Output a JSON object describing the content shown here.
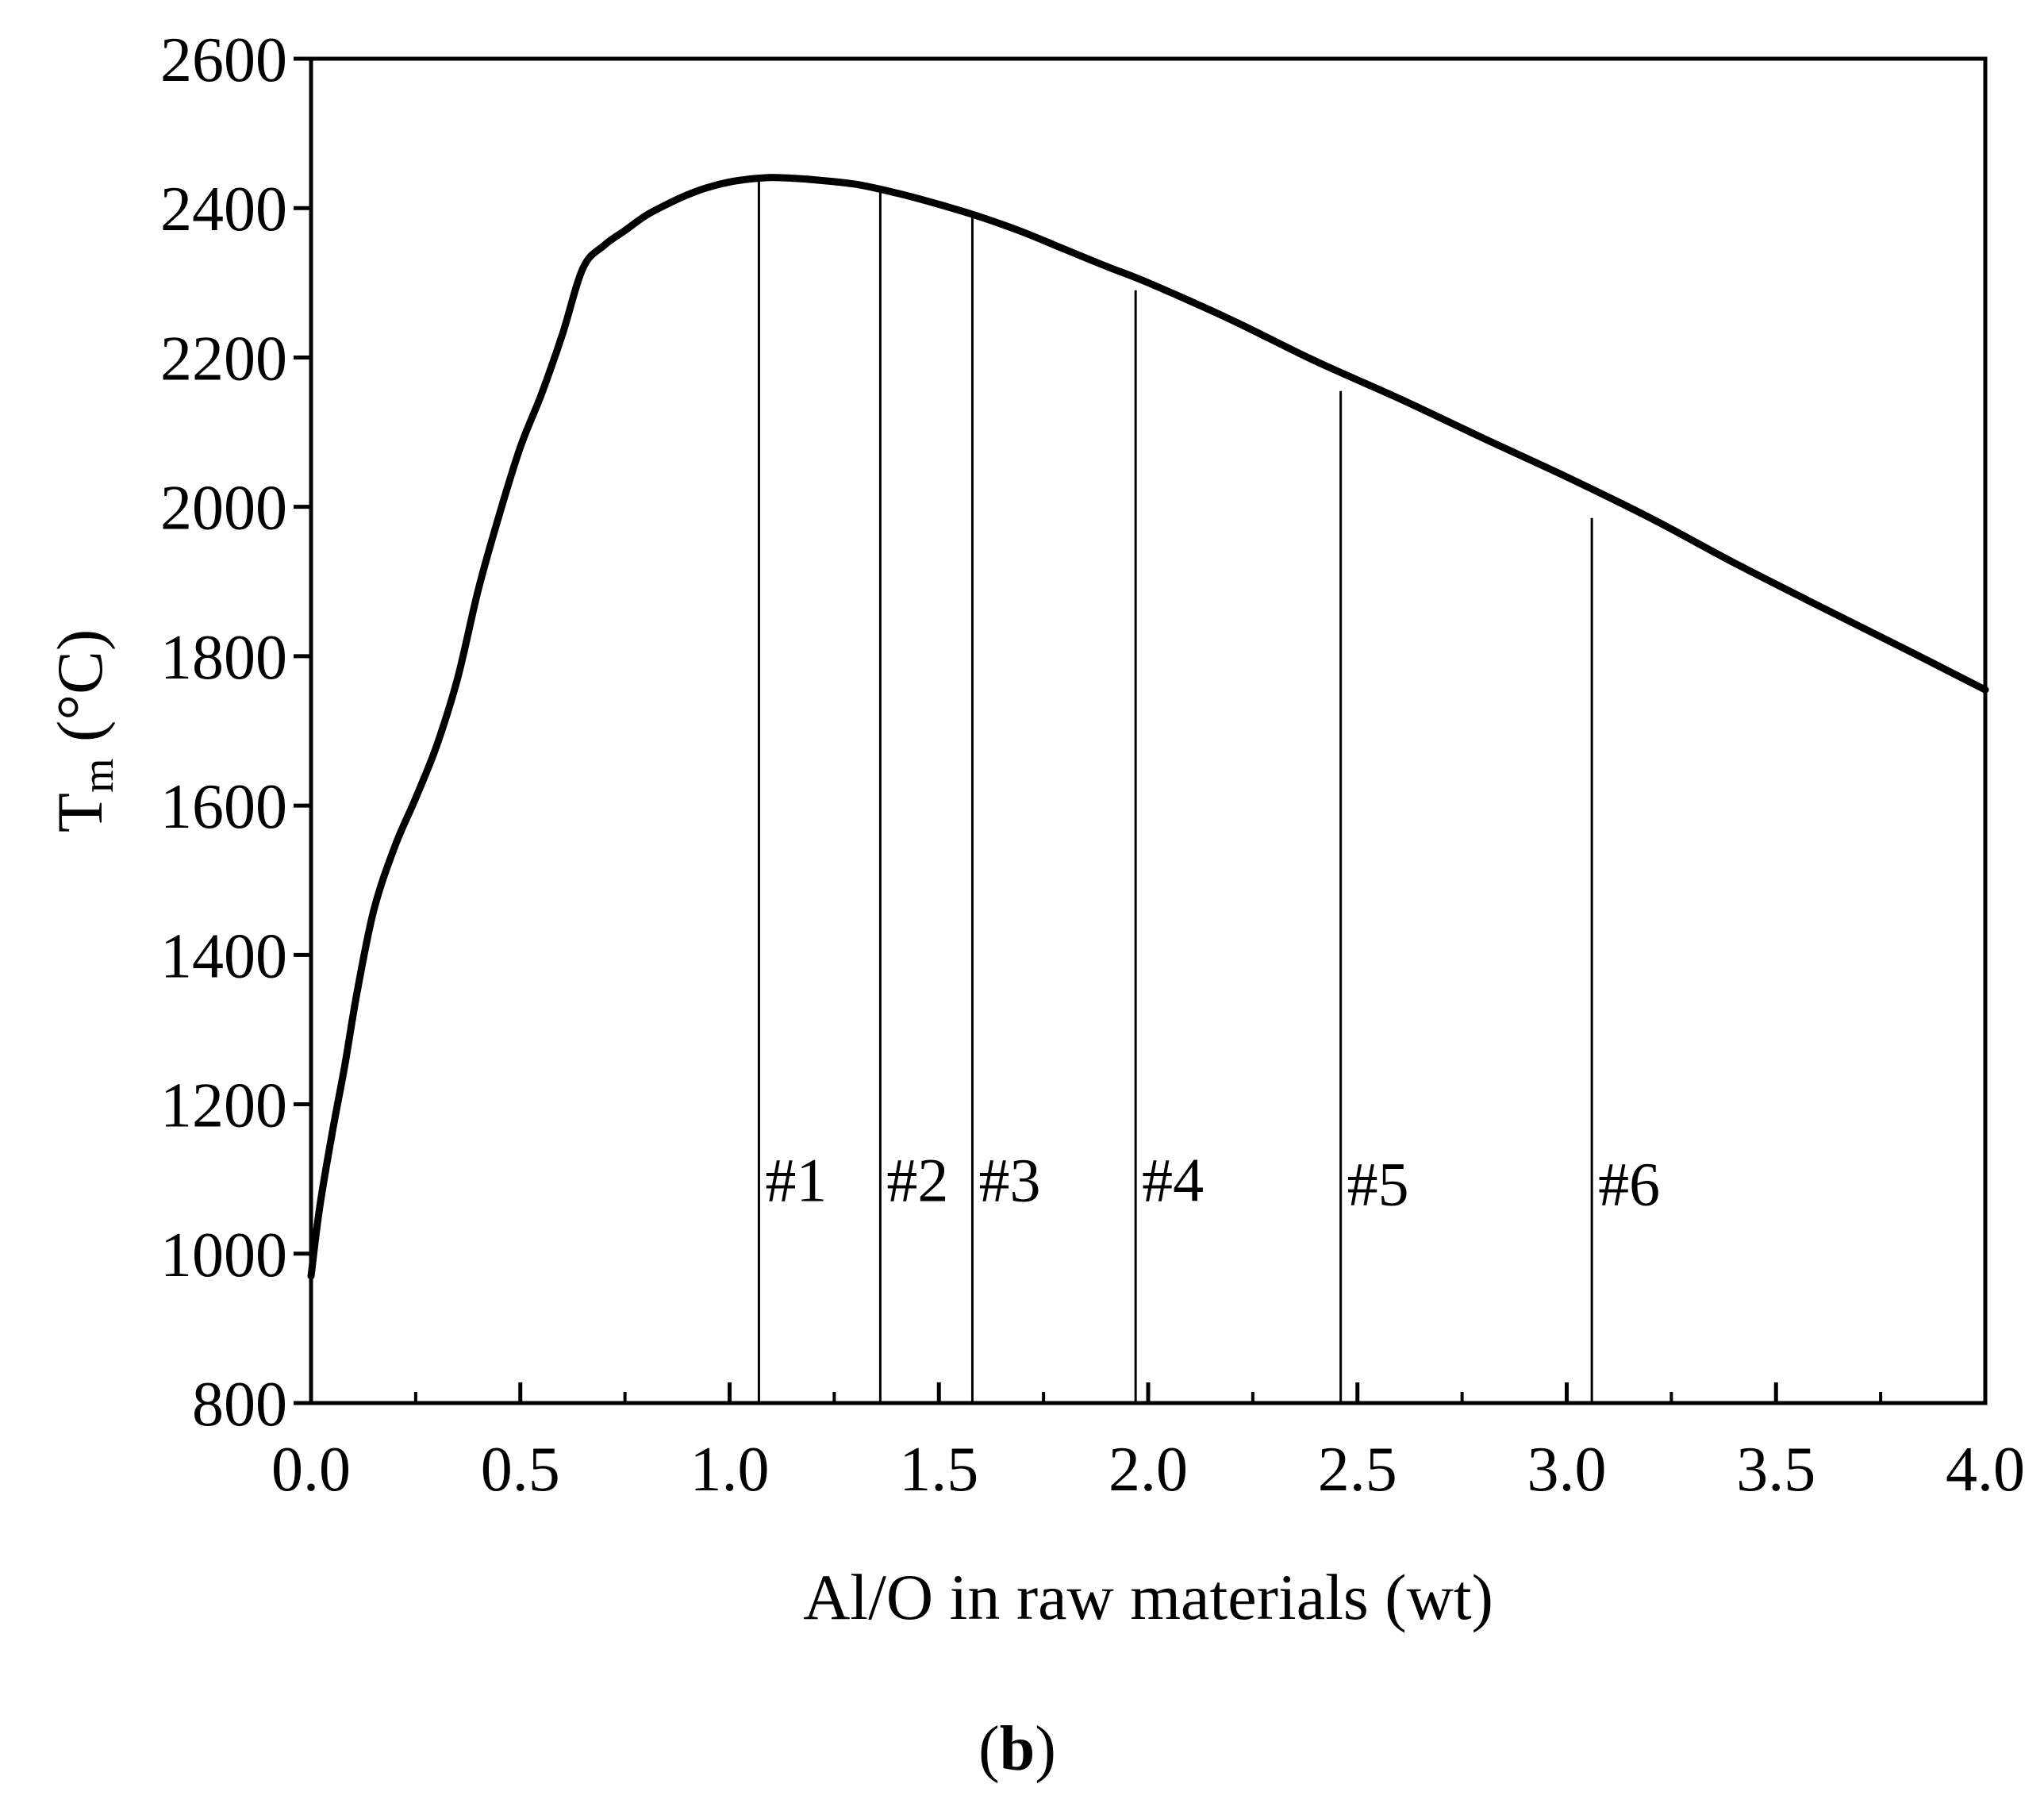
{
  "chart_data": {
    "type": "line",
    "title": "",
    "xlabel": "Al/O in raw materials (wt)",
    "ylabel_main": "T",
    "ylabel_subscript": "m",
    "ylabel_unit": " (°C)",
    "panel_label": "(b)",
    "panel_label_bold": "b",
    "xlim": [
      0.0,
      4.0
    ],
    "ylim": [
      800,
      2600
    ],
    "xticks": [
      0.0,
      0.5,
      1.0,
      1.5,
      2.0,
      2.5,
      3.0,
      3.5,
      4.0
    ],
    "xtick_labels": [
      "0.0",
      "0.5",
      "1.0",
      "1.5",
      "2.0",
      "2.5",
      "3.0",
      "3.5",
      "4.0"
    ],
    "yticks": [
      800,
      1000,
      1200,
      1400,
      1600,
      1800,
      2000,
      2200,
      2400,
      2600
    ],
    "ytick_labels": [
      "800",
      "1000",
      "1200",
      "1400",
      "1600",
      "1800",
      "2000",
      "2200",
      "2400",
      "2600"
    ],
    "grid": false,
    "series": [
      {
        "name": "Tm",
        "x": [
          0.0,
          0.02,
          0.05,
          0.08,
          0.11,
          0.15,
          0.2,
          0.25,
          0.3,
          0.35,
          0.4,
          0.45,
          0.5,
          0.55,
          0.6,
          0.65,
          0.7,
          0.75,
          0.8,
          0.85,
          0.9,
          0.95,
          1.0,
          1.05,
          1.1,
          1.15,
          1.2,
          1.3,
          1.4,
          1.5,
          1.6,
          1.7,
          1.8,
          1.9,
          2.0,
          2.2,
          2.4,
          2.6,
          2.8,
          3.0,
          3.2,
          3.4,
          3.6,
          3.8,
          4.0
        ],
        "y": [
          970,
          1060,
          1160,
          1250,
          1350,
          1460,
          1545,
          1610,
          1680,
          1770,
          1890,
          1990,
          2080,
          2150,
          2230,
          2320,
          2350,
          2370,
          2390,
          2405,
          2418,
          2428,
          2435,
          2439,
          2441,
          2440,
          2438,
          2432,
          2420,
          2405,
          2388,
          2368,
          2345,
          2322,
          2300,
          2250,
          2195,
          2145,
          2092,
          2040,
          1985,
          1925,
          1868,
          1812,
          1755
        ]
      }
    ],
    "markers": [
      {
        "label": "#1",
        "x": 1.07,
        "y_top": 2440,
        "label_y": 1100
      },
      {
        "label": "#2",
        "x": 1.36,
        "y_top": 2430,
        "label_y": 1100
      },
      {
        "label": "#3",
        "x": 1.58,
        "y_top": 2390,
        "label_y": 1100
      },
      {
        "label": "#4",
        "x": 1.97,
        "y_top": 2290,
        "label_y": 1100
      },
      {
        "label": "#5",
        "x": 2.46,
        "y_top": 2155,
        "label_y": 1095
      },
      {
        "label": "#6",
        "x": 3.06,
        "y_top": 1985,
        "label_y": 1095
      }
    ]
  }
}
